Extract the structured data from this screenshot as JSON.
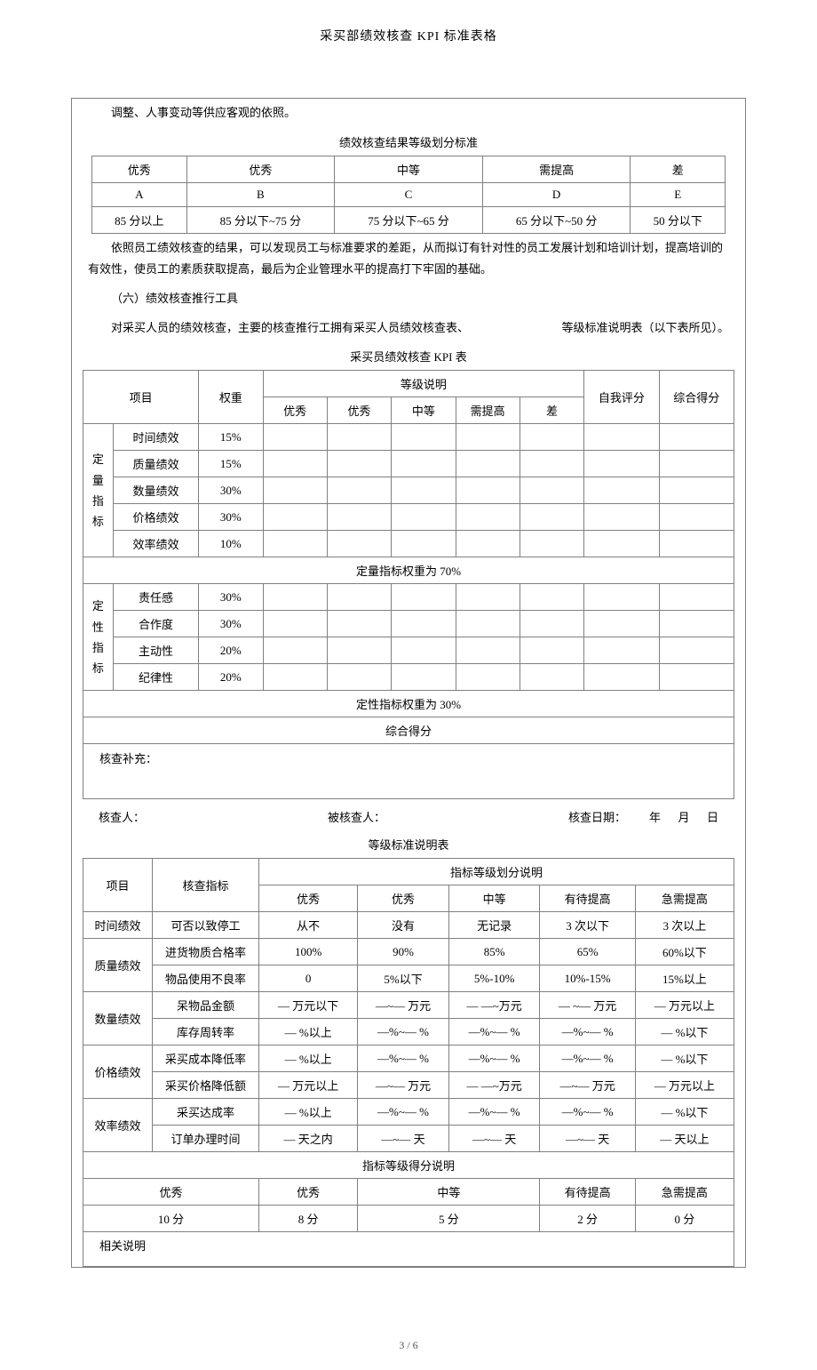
{
  "docTitle": "采买部绩效核查 KPI 标准表格",
  "introText": "调整、人事变动等供应客观的依照。",
  "gradingTitle": "绩效核查结果等级划分标准",
  "gradingHeaders": [
    "优秀",
    "优秀",
    "中等",
    "需提高",
    "差"
  ],
  "gradingLetters": [
    "A",
    "B",
    "C",
    "D",
    "E"
  ],
  "gradingRanges": [
    "85 分以上",
    "85 分以下~75 分",
    "75 分以下~65 分",
    "65 分以下~50 分",
    "50 分以下"
  ],
  "para1": "依照员工绩效核查的结果，可以发现员工与标准要求的差距，从而拟订有针对性的员工发展计划和培训计划，提高培训的有效性，使员工的素质获取提高，最后为企业管理水平的提高打下牢固的基础。",
  "para2": "（六）绩效核查推行工具",
  "para3a": "对采买人员的绩效核查，主要的核查推行工拥有采买人员绩效核查表、",
  "para3b": "等级标准说明表（以下表所见）。",
  "kpiTableTitle": "采买员绩效核查    KPI 表",
  "kpi": {
    "col": {
      "project": "项目",
      "weight": "权重",
      "levels": "等级说明",
      "selfScore": "自我评分",
      "totalScore": "综合得分"
    },
    "levelCols": [
      "优秀",
      "优秀",
      "中等",
      "需提高",
      "差"
    ],
    "quantGroup": "定量指标",
    "quantRows": [
      {
        "name": "时间绩效",
        "weight": "15%"
      },
      {
        "name": "质量绩效",
        "weight": "15%"
      },
      {
        "name": "数量绩效",
        "weight": "30%"
      },
      {
        "name": "价格绩效",
        "weight": "30%"
      },
      {
        "name": "效率绩效",
        "weight": "10%"
      }
    ],
    "quantTotal": "定量指标权重为 70%",
    "qualGroup": "定性指标",
    "qualRows": [
      {
        "name": "责任感",
        "weight": "30%"
      },
      {
        "name": "合作度",
        "weight": "30%"
      },
      {
        "name": "主动性",
        "weight": "20%"
      },
      {
        "name": "纪律性",
        "weight": "20%"
      }
    ],
    "qualTotal": "定性指标权重为 30%",
    "finalScore": "综合得分",
    "supplement": "核查补充："
  },
  "signer": {
    "checker": "核查人：",
    "checked": "被核查人：",
    "date": "核查日期：",
    "dateFmt": "年      月      日"
  },
  "stdTableTitle": "等级标准说明表",
  "std": {
    "col": {
      "project": "项目",
      "index": "核查指标",
      "desc": "指标等级划分说明"
    },
    "levelCols": [
      "优秀",
      "优秀",
      "中等",
      "有待提高",
      "急需提高"
    ],
    "groups": [
      {
        "name": "时间绩效",
        "span": 1,
        "rows": [
          {
            "idx": "可否以致停工",
            "v": [
              "从不",
              "没有",
              "无记录",
              "3 次以下",
              "3 次以上"
            ]
          }
        ]
      },
      {
        "name": "质量绩效",
        "span": 2,
        "rows": [
          {
            "idx": "进货物质合格率",
            "v": [
              "100%",
              "90%",
              "85%",
              "65%",
              "60%以下"
            ]
          },
          {
            "idx": "物品使用不良率",
            "v": [
              "0",
              "5%以下",
              "5%-10%",
              "10%-15%",
              "15%以上"
            ]
          }
        ]
      },
      {
        "name": "数量绩效",
        "span": 2,
        "rows": [
          {
            "idx": "呆物品金额",
            "v": [
              "— 万元以下",
              "—~— 万元",
              "— —~万元",
              "— ~— 万元",
              "— 万元以上"
            ]
          },
          {
            "idx": "库存周转率",
            "v": [
              "— %以上",
              "—%~— %",
              "—%~—  %",
              "—%~—  %",
              "—  %以下"
            ]
          }
        ]
      },
      {
        "name": "价格绩效",
        "span": 2,
        "rows": [
          {
            "idx": "采买成本降低率",
            "v": [
              "— %以上",
              "—%~— %",
              "—%~—  %",
              "—%~—  %",
              "—  %以下"
            ]
          },
          {
            "idx": "采买价格降低额",
            "v": [
              "— 万元以上",
              "—~— 万元",
              "— —~万元",
              "—~— 万元",
              "— 万元以上"
            ]
          }
        ]
      },
      {
        "name": "效率绩效",
        "span": 2,
        "rows": [
          {
            "idx": "采买达成率",
            "v": [
              "— %以上",
              "—%~— %",
              "—%~—  %",
              "—%~—  %",
              "—  %以下"
            ]
          },
          {
            "idx": "订单办理时间",
            "v": [
              "— 天之内",
              "—~— 天",
              "—~— 天",
              "—~— 天",
              "—  天以上"
            ]
          }
        ]
      }
    ],
    "scoreTitle": "指标等级得分说明",
    "scoreHeaders": [
      "优秀",
      "优秀",
      "中等",
      "有待提高",
      "急需提高"
    ],
    "scoreValues": [
      "10 分",
      "8 分",
      "5 分",
      "2 分",
      "0 分"
    ],
    "note": "相关说明"
  },
  "pageNum": "3 / 6",
  "style": {
    "pageWidth": 920,
    "pageHeight": 1303,
    "bg": "#ffffff",
    "text": "#000000",
    "border": "#808080",
    "fontSize": 13,
    "fontFamily": "SimSun"
  }
}
